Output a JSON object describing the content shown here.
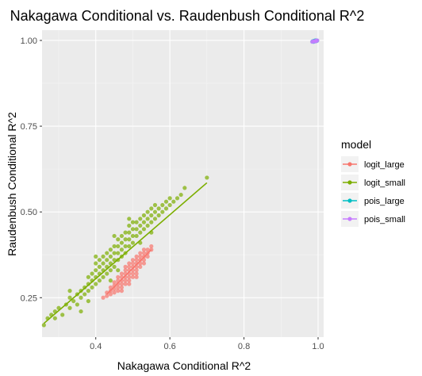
{
  "chart_data": {
    "type": "scatter",
    "title": "Nakagawa Conditional vs. Raudenbush Conditional R^2",
    "xlabel": "Nakagawa Conditional R^2",
    "ylabel": "Raudenbush Conditional R^2",
    "xlim": [
      0.255,
      1.015
    ],
    "ylim": [
      0.135,
      1.03
    ],
    "x_ticks": [
      {
        "value": 0.4,
        "label": "0.4"
      },
      {
        "value": 0.6,
        "label": "0.6"
      },
      {
        "value": 0.8,
        "label": "0.8"
      },
      {
        "value": 1.0,
        "label": "1.0"
      }
    ],
    "y_ticks": [
      {
        "value": 0.25,
        "label": "0.25"
      },
      {
        "value": 0.5,
        "label": "0.50"
      },
      {
        "value": 0.75,
        "label": "0.75"
      },
      {
        "value": 1.0,
        "label": "1.00"
      }
    ],
    "grid": true,
    "legend": {
      "title": "model",
      "placement": "right"
    },
    "series": [
      {
        "name": "logit_large",
        "color": "#F8766D",
        "fit_line": [
          [
            0.43,
            0.26
          ],
          [
            0.55,
            0.39
          ]
        ],
        "points": [
          [
            0.43,
            0.255
          ],
          [
            0.44,
            0.26
          ],
          [
            0.44,
            0.27
          ],
          [
            0.45,
            0.265
          ],
          [
            0.45,
            0.275
          ],
          [
            0.45,
            0.285
          ],
          [
            0.46,
            0.27
          ],
          [
            0.46,
            0.28
          ],
          [
            0.46,
            0.29
          ],
          [
            0.46,
            0.3
          ],
          [
            0.47,
            0.28
          ],
          [
            0.47,
            0.29
          ],
          [
            0.47,
            0.3
          ],
          [
            0.47,
            0.31
          ],
          [
            0.48,
            0.29
          ],
          [
            0.48,
            0.3
          ],
          [
            0.48,
            0.31
          ],
          [
            0.48,
            0.32
          ],
          [
            0.48,
            0.33
          ],
          [
            0.49,
            0.3
          ],
          [
            0.49,
            0.31
          ],
          [
            0.49,
            0.32
          ],
          [
            0.49,
            0.33
          ],
          [
            0.49,
            0.34
          ],
          [
            0.5,
            0.31
          ],
          [
            0.5,
            0.32
          ],
          [
            0.5,
            0.33
          ],
          [
            0.5,
            0.34
          ],
          [
            0.5,
            0.35
          ],
          [
            0.51,
            0.32
          ],
          [
            0.51,
            0.33
          ],
          [
            0.51,
            0.34
          ],
          [
            0.51,
            0.35
          ],
          [
            0.51,
            0.36
          ],
          [
            0.52,
            0.34
          ],
          [
            0.52,
            0.35
          ],
          [
            0.52,
            0.36
          ],
          [
            0.52,
            0.37
          ],
          [
            0.53,
            0.35
          ],
          [
            0.53,
            0.36
          ],
          [
            0.53,
            0.37
          ],
          [
            0.53,
            0.38
          ],
          [
            0.54,
            0.37
          ],
          [
            0.54,
            0.38
          ],
          [
            0.54,
            0.39
          ],
          [
            0.55,
            0.39
          ],
          [
            0.45,
            0.295
          ],
          [
            0.47,
            0.32
          ],
          [
            0.44,
            0.28
          ],
          [
            0.42,
            0.25
          ],
          [
            0.46,
            0.31
          ],
          [
            0.5,
            0.36
          ],
          [
            0.52,
            0.38
          ],
          [
            0.48,
            0.34
          ],
          [
            0.49,
            0.35
          ],
          [
            0.51,
            0.37
          ],
          [
            0.53,
            0.39
          ],
          [
            0.47,
            0.27
          ],
          [
            0.49,
            0.29
          ],
          [
            0.51,
            0.31
          ],
          [
            0.43,
            0.265
          ],
          [
            0.55,
            0.4
          ]
        ]
      },
      {
        "name": "logit_small",
        "color": "#7CAE00",
        "fit_line": [
          [
            0.26,
            0.175
          ],
          [
            0.7,
            0.585
          ]
        ],
        "points": [
          [
            0.26,
            0.17
          ],
          [
            0.27,
            0.19
          ],
          [
            0.28,
            0.2
          ],
          [
            0.29,
            0.21
          ],
          [
            0.29,
            0.19
          ],
          [
            0.3,
            0.22
          ],
          [
            0.31,
            0.2
          ],
          [
            0.32,
            0.23
          ],
          [
            0.33,
            0.22
          ],
          [
            0.33,
            0.25
          ],
          [
            0.34,
            0.24
          ],
          [
            0.35,
            0.26
          ],
          [
            0.35,
            0.23
          ],
          [
            0.36,
            0.27
          ],
          [
            0.36,
            0.25
          ],
          [
            0.37,
            0.28
          ],
          [
            0.37,
            0.26
          ],
          [
            0.38,
            0.29
          ],
          [
            0.38,
            0.27
          ],
          [
            0.38,
            0.31
          ],
          [
            0.39,
            0.28
          ],
          [
            0.39,
            0.3
          ],
          [
            0.39,
            0.32
          ],
          [
            0.4,
            0.29
          ],
          [
            0.4,
            0.31
          ],
          [
            0.4,
            0.33
          ],
          [
            0.4,
            0.35
          ],
          [
            0.41,
            0.3
          ],
          [
            0.41,
            0.32
          ],
          [
            0.41,
            0.34
          ],
          [
            0.41,
            0.36
          ],
          [
            0.42,
            0.31
          ],
          [
            0.42,
            0.33
          ],
          [
            0.42,
            0.35
          ],
          [
            0.42,
            0.37
          ],
          [
            0.43,
            0.32
          ],
          [
            0.43,
            0.34
          ],
          [
            0.43,
            0.36
          ],
          [
            0.43,
            0.38
          ],
          [
            0.44,
            0.33
          ],
          [
            0.44,
            0.35
          ],
          [
            0.44,
            0.37
          ],
          [
            0.44,
            0.39
          ],
          [
            0.45,
            0.34
          ],
          [
            0.45,
            0.36
          ],
          [
            0.45,
            0.38
          ],
          [
            0.45,
            0.4
          ],
          [
            0.46,
            0.36
          ],
          [
            0.46,
            0.38
          ],
          [
            0.46,
            0.4
          ],
          [
            0.46,
            0.42
          ],
          [
            0.47,
            0.37
          ],
          [
            0.47,
            0.39
          ],
          [
            0.47,
            0.41
          ],
          [
            0.47,
            0.43
          ],
          [
            0.48,
            0.38
          ],
          [
            0.48,
            0.4
          ],
          [
            0.48,
            0.42
          ],
          [
            0.48,
            0.44
          ],
          [
            0.49,
            0.4
          ],
          [
            0.49,
            0.42
          ],
          [
            0.49,
            0.44
          ],
          [
            0.49,
            0.46
          ],
          [
            0.5,
            0.41
          ],
          [
            0.5,
            0.43
          ],
          [
            0.5,
            0.45
          ],
          [
            0.5,
            0.47
          ],
          [
            0.51,
            0.43
          ],
          [
            0.51,
            0.45
          ],
          [
            0.51,
            0.47
          ],
          [
            0.52,
            0.44
          ],
          [
            0.52,
            0.46
          ],
          [
            0.52,
            0.48
          ],
          [
            0.53,
            0.45
          ],
          [
            0.53,
            0.47
          ],
          [
            0.53,
            0.49
          ],
          [
            0.54,
            0.46
          ],
          [
            0.54,
            0.48
          ],
          [
            0.54,
            0.5
          ],
          [
            0.55,
            0.47
          ],
          [
            0.55,
            0.49
          ],
          [
            0.55,
            0.51
          ],
          [
            0.56,
            0.48
          ],
          [
            0.56,
            0.5
          ],
          [
            0.56,
            0.52
          ],
          [
            0.57,
            0.49
          ],
          [
            0.57,
            0.51
          ],
          [
            0.58,
            0.5
          ],
          [
            0.58,
            0.52
          ],
          [
            0.59,
            0.51
          ],
          [
            0.59,
            0.53
          ],
          [
            0.6,
            0.52
          ],
          [
            0.6,
            0.54
          ],
          [
            0.61,
            0.53
          ],
          [
            0.62,
            0.54
          ],
          [
            0.63,
            0.55
          ],
          [
            0.64,
            0.57
          ],
          [
            0.7,
            0.6
          ],
          [
            0.36,
            0.21
          ],
          [
            0.38,
            0.24
          ],
          [
            0.44,
            0.3
          ],
          [
            0.46,
            0.33
          ],
          [
            0.52,
            0.41
          ],
          [
            0.55,
            0.44
          ],
          [
            0.33,
            0.27
          ],
          [
            0.4,
            0.37
          ],
          [
            0.45,
            0.43
          ],
          [
            0.49,
            0.48
          ]
        ]
      },
      {
        "name": "pois_large",
        "color": "#00BFC4",
        "fit_line": [
          [
            0.985,
            0.998
          ],
          [
            0.997,
            1.0
          ]
        ],
        "points": [
          [
            0.985,
            0.997
          ],
          [
            0.987,
            0.998
          ],
          [
            0.989,
            0.998
          ],
          [
            0.99,
            0.999
          ],
          [
            0.992,
            0.999
          ],
          [
            0.994,
            0.999
          ],
          [
            0.996,
            1.0
          ],
          [
            0.988,
            0.996
          ],
          [
            0.991,
            0.998
          ],
          [
            0.993,
            1.0
          ],
          [
            0.995,
            0.998
          ],
          [
            0.997,
            0.999
          ]
        ]
      },
      {
        "name": "pois_small",
        "color": "#C77CFF",
        "fit_line": [
          [
            0.984,
            0.996
          ],
          [
            0.998,
            1.0
          ]
        ],
        "points": [
          [
            0.984,
            0.996
          ],
          [
            0.986,
            0.997
          ],
          [
            0.99,
            0.998
          ],
          [
            0.994,
            0.999
          ],
          [
            0.998,
            1.0
          ],
          [
            0.992,
            0.997
          ],
          [
            0.996,
            0.999
          ]
        ]
      }
    ]
  }
}
